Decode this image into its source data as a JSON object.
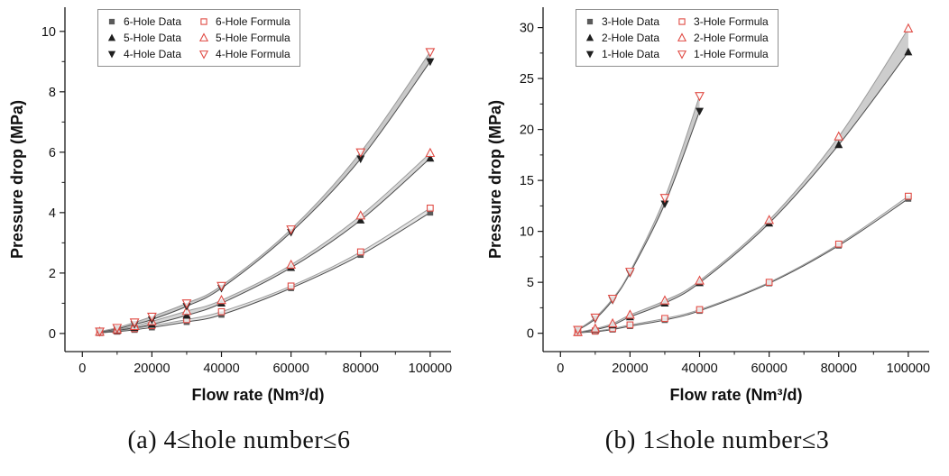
{
  "figure": {
    "panels": [
      {
        "caption": "(a) 4≤hole number≤6"
      },
      {
        "caption": "(b) 1≤hole number≤3"
      }
    ]
  },
  "colors": {
    "axis": "#1a1a1a",
    "data_line": "#4d4d4d",
    "formula_line": "#9a9a9a",
    "formula_red": "#e04b44",
    "data_black": "#1f1f1f",
    "data_gray_square": "#5a5a5a"
  },
  "chart_data": [
    {
      "type": "line",
      "title": "",
      "xlabel": "Flow rate (Nm³/d)",
      "ylabel": "Pressure drop (MPa)",
      "xlim": [
        -5000,
        106000
      ],
      "ylim": [
        -0.6,
        10.8
      ],
      "xticks": [
        0,
        20000,
        40000,
        60000,
        80000,
        100000
      ],
      "x_minors": [
        10000,
        30000,
        50000,
        70000,
        90000
      ],
      "yticks": [
        0,
        2,
        4,
        6,
        8,
        10
      ],
      "y_minors": [
        1,
        3,
        5,
        7,
        9
      ],
      "grid": false,
      "legend_position": "top-left",
      "bands": [
        {
          "lower": 0,
          "upper": 1,
          "fill": "#e4e4e4"
        },
        {
          "lower": 2,
          "upper": 3,
          "fill": "#d6d6d6"
        },
        {
          "lower": 4,
          "upper": 5,
          "fill": "#c9c9c9"
        }
      ],
      "series": [
        {
          "name": "6-Hole Data",
          "marker": "square-filled",
          "color": "#5a5a5a",
          "line_color": "#4d4d4d",
          "x": [
            5000,
            10000,
            15000,
            20000,
            30000,
            40000,
            60000,
            80000,
            100000
          ],
          "y": [
            0.02,
            0.06,
            0.12,
            0.2,
            0.38,
            0.62,
            1.5,
            2.6,
            4.0
          ]
        },
        {
          "name": "6-Hole Formula",
          "marker": "square-open",
          "color": "#e04b44",
          "line_color": "#9a9a9a",
          "x": [
            5000,
            10000,
            15000,
            20000,
            30000,
            40000,
            60000,
            80000,
            100000
          ],
          "y": [
            0.03,
            0.09,
            0.16,
            0.26,
            0.46,
            0.72,
            1.57,
            2.7,
            4.15
          ]
        },
        {
          "name": "5-Hole Data",
          "marker": "triangle-up-filled",
          "color": "#1f1f1f",
          "line_color": "#4d4d4d",
          "x": [
            5000,
            10000,
            15000,
            20000,
            30000,
            40000,
            60000,
            80000,
            100000
          ],
          "y": [
            0.03,
            0.1,
            0.19,
            0.3,
            0.6,
            1.0,
            2.18,
            3.75,
            5.8
          ]
        },
        {
          "name": "5-Hole Formula",
          "marker": "triangle-up-open",
          "color": "#e04b44",
          "line_color": "#9a9a9a",
          "x": [
            5000,
            10000,
            15000,
            20000,
            30000,
            40000,
            60000,
            80000,
            100000
          ],
          "y": [
            0.05,
            0.13,
            0.24,
            0.4,
            0.74,
            1.1,
            2.27,
            3.9,
            5.97
          ]
        },
        {
          "name": "4-Hole Data",
          "marker": "triangle-down-filled",
          "color": "#1f1f1f",
          "line_color": "#4d4d4d",
          "x": [
            5000,
            10000,
            15000,
            20000,
            30000,
            40000,
            60000,
            80000,
            100000
          ],
          "y": [
            0.05,
            0.15,
            0.3,
            0.46,
            0.9,
            1.5,
            3.35,
            5.78,
            9.0
          ]
        },
        {
          "name": "4-Hole Formula",
          "marker": "triangle-down-open",
          "color": "#e04b44",
          "line_color": "#9a9a9a",
          "x": [
            5000,
            10000,
            15000,
            20000,
            30000,
            40000,
            60000,
            80000,
            100000
          ],
          "y": [
            0.07,
            0.19,
            0.37,
            0.56,
            1.0,
            1.58,
            3.45,
            6.0,
            9.32
          ]
        }
      ]
    },
    {
      "type": "line",
      "title": "",
      "xlabel": "Flow rate (Nm³/d)",
      "ylabel": "Pressure drop (MPa)",
      "xlim": [
        -5000,
        106000
      ],
      "ylim": [
        -1.8,
        32.0
      ],
      "xticks": [
        0,
        20000,
        40000,
        60000,
        80000,
        100000
      ],
      "x_minors": [
        10000,
        30000,
        50000,
        70000,
        90000
      ],
      "yticks": [
        0,
        5,
        10,
        15,
        20,
        25,
        30
      ],
      "y_minors": [
        2.5,
        7.5,
        12.5,
        17.5,
        22.5,
        27.5
      ],
      "grid": false,
      "legend_position": "top-left",
      "bands": [
        {
          "lower": 0,
          "upper": 1,
          "fill": "#e0e0e0"
        },
        {
          "lower": 2,
          "upper": 3,
          "fill": "#cdcdcd"
        },
        {
          "lower": 4,
          "upper": 5,
          "fill": "#c9c9c9"
        }
      ],
      "series": [
        {
          "name": "3-Hole Data",
          "marker": "square-filled",
          "color": "#5a5a5a",
          "line_color": "#4d4d4d",
          "x": [
            5000,
            10000,
            15000,
            20000,
            30000,
            40000,
            60000,
            80000,
            100000
          ],
          "y": [
            0.04,
            0.16,
            0.36,
            0.7,
            1.3,
            2.2,
            4.9,
            8.6,
            13.2
          ]
        },
        {
          "name": "3-Hole Formula",
          "marker": "square-open",
          "color": "#e04b44",
          "line_color": "#9a9a9a",
          "x": [
            5000,
            10000,
            15000,
            20000,
            30000,
            40000,
            60000,
            80000,
            100000
          ],
          "y": [
            0.06,
            0.22,
            0.46,
            0.82,
            1.45,
            2.32,
            5.0,
            8.75,
            13.45
          ]
        },
        {
          "name": "2-Hole Data",
          "marker": "triangle-up-filled",
          "color": "#1f1f1f",
          "line_color": "#4d4d4d",
          "x": [
            5000,
            10000,
            15000,
            20000,
            30000,
            40000,
            60000,
            80000,
            100000
          ],
          "y": [
            0.08,
            0.35,
            0.8,
            1.6,
            2.95,
            4.95,
            10.8,
            18.5,
            27.6
          ]
        },
        {
          "name": "2-Hole Formula",
          "marker": "triangle-up-open",
          "color": "#e04b44",
          "line_color": "#9a9a9a",
          "x": [
            5000,
            10000,
            15000,
            20000,
            30000,
            40000,
            60000,
            80000,
            100000
          ],
          "y": [
            0.1,
            0.45,
            0.95,
            1.8,
            3.2,
            5.15,
            11.1,
            19.3,
            29.9
          ]
        },
        {
          "name": "1-Hole Data",
          "marker": "triangle-down-filled",
          "color": "#1f1f1f",
          "line_color": "#4d4d4d",
          "x": [
            5000,
            10000,
            15000,
            20000,
            30000,
            40000
          ],
          "y": [
            0.3,
            1.4,
            3.25,
            5.9,
            12.7,
            21.8
          ]
        },
        {
          "name": "1-Hole Formula",
          "marker": "triangle-down-open",
          "color": "#e04b44",
          "line_color": "#9a9a9a",
          "x": [
            5000,
            10000,
            15000,
            20000,
            30000,
            40000
          ],
          "y": [
            0.35,
            1.55,
            3.4,
            6.05,
            13.3,
            23.3
          ]
        }
      ]
    }
  ]
}
